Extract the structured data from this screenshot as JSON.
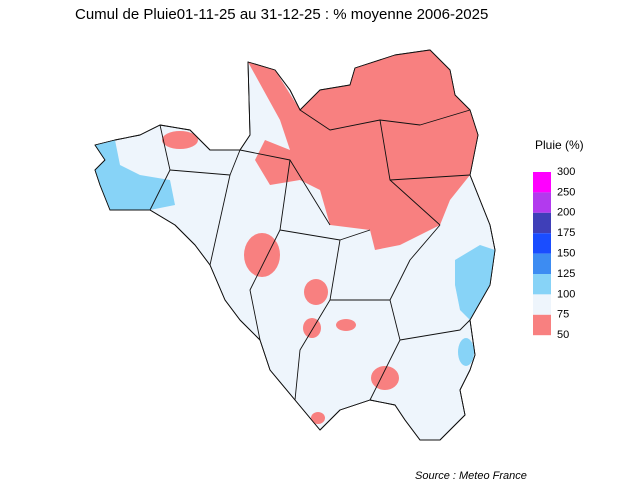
{
  "title": "Cumul de Pluie01-11-25 au 31-12-25 : % moyenne 2006-2025",
  "legend": {
    "title": "Pluie (%)",
    "breaks": [
      300,
      250,
      200,
      175,
      150,
      125,
      100,
      75,
      50
    ],
    "colors": [
      "#ff00ff",
      "#b23aee",
      "#3f3fb8",
      "#1a4dff",
      "#3d8cf2",
      "#87d3f7",
      "#eef5fc",
      "#f88080"
    ]
  },
  "source": "Source : Meteo France"
}
